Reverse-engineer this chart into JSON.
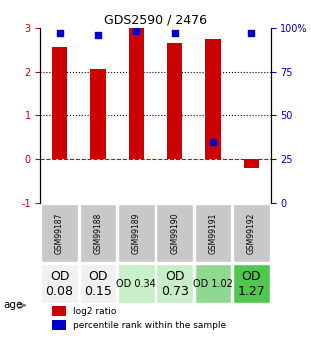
{
  "title": "GDS2590 / 2476",
  "samples": [
    "GSM99187",
    "GSM99188",
    "GSM99189",
    "GSM99190",
    "GSM99191",
    "GSM99192"
  ],
  "log2_ratios": [
    2.55,
    2.05,
    3.0,
    2.65,
    2.75,
    -0.2
  ],
  "percentile_ranks": [
    97,
    96,
    98,
    97,
    35,
    97
  ],
  "od_values": [
    "OD\n0.08",
    "OD\n0.15",
    "OD 0.34",
    "OD\n0.73",
    "OD 1.02",
    "OD\n1.27"
  ],
  "od_fontsize": [
    9,
    9,
    7,
    9,
    7,
    9
  ],
  "od_bg_colors": [
    "#f0f0f0",
    "#f0f0f0",
    "#c8f0c8",
    "#c8eec8",
    "#90d890",
    "#50c850"
  ],
  "bar_color": "#cc0000",
  "dot_color": "#0000cc",
  "ylabel_left_color": "#cc0000",
  "ylabel_right_color": "#0000cc",
  "ylim_left": [
    -1,
    3
  ],
  "ylim_right": [
    0,
    100
  ],
  "yticks_left": [
    -1,
    0,
    1,
    2,
    3
  ],
  "yticks_right": [
    0,
    25,
    50,
    75,
    100
  ],
  "ytick_labels_right": [
    "0",
    "25",
    "50",
    "75",
    "100%"
  ],
  "hline_dotted": [
    1,
    2
  ],
  "hline_dashed_color": "#cc0000",
  "sample_bg_color": "#c8c8c8",
  "bar_width": 0.4,
  "legend_red_label": "log2 ratio",
  "legend_blue_label": "percentile rank within the sample"
}
